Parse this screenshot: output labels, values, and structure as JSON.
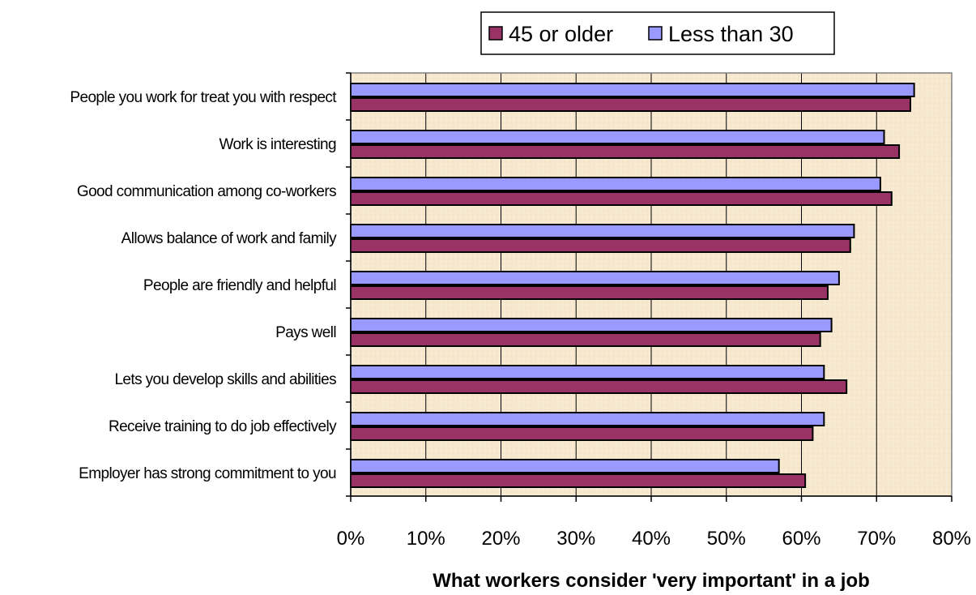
{
  "chart_data": {
    "type": "bar",
    "orientation": "horizontal",
    "categories": [
      "People you work for treat you with respect",
      "Work is interesting",
      "Good communication among co-workers",
      "Allows balance of work and family",
      "People are friendly and helpful",
      "Pays well",
      "Lets you develop skills and abilities",
      "Receive training to do job effectively",
      "Employer has strong commitment to you"
    ],
    "series": [
      {
        "name": "Less than 30",
        "color": "#9999ff",
        "values": [
          75,
          71,
          70.5,
          67,
          65,
          64,
          63,
          63,
          57
        ]
      },
      {
        "name": "45 or older",
        "color": "#993366",
        "values": [
          74.5,
          73,
          72,
          66.5,
          63.5,
          62.5,
          66,
          61.5,
          60.5
        ]
      }
    ],
    "legend": {
      "position": "top-right",
      "items": [
        "45 or older",
        "Less than 30"
      ]
    },
    "xlabel": "What workers consider 'very important' in a job",
    "xlim": [
      0,
      80
    ],
    "x_ticks": [
      "0%",
      "10%",
      "20%",
      "30%",
      "40%",
      "50%",
      "60%",
      "70%",
      "80%"
    ],
    "grid": true,
    "plot_background": "#f7e9cf"
  }
}
